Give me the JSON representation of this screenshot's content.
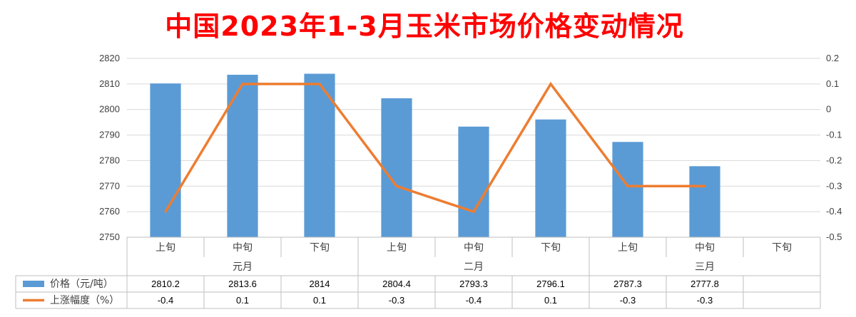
{
  "chart_data": {
    "type": "bar",
    "title": "中国2023年1-3月玉米市场价格变动情况",
    "categories": [
      "上旬",
      "中旬",
      "下旬",
      "上旬",
      "中旬",
      "下旬",
      "上旬",
      "中旬",
      "下旬"
    ],
    "months": [
      {
        "label": "元月",
        "span": 3
      },
      {
        "label": "二月",
        "span": 3
      },
      {
        "label": "三月",
        "span": 3
      }
    ],
    "series": [
      {
        "name": "价格（元/吨）",
        "type": "bar",
        "axis": "left",
        "color": "#5b9bd5",
        "values": [
          2810.2,
          2813.6,
          2814,
          2804.4,
          2793.3,
          2796.1,
          2787.3,
          2777.8,
          null
        ],
        "labels": [
          "2810.2",
          "2813.6",
          "2814",
          "2804.4",
          "2793.3",
          "2796.1",
          "2787.3",
          "2777.8",
          ""
        ]
      },
      {
        "name": "上涨幅度（%）",
        "type": "line",
        "axis": "right",
        "color": "#ed7d31",
        "values": [
          -0.4,
          0.1,
          0.1,
          -0.3,
          -0.4,
          0.1,
          -0.3,
          -0.3,
          null
        ],
        "labels": [
          "-0.4",
          "0.1",
          "0.1",
          "-0.3",
          "-0.4",
          "0.1",
          "-0.3",
          "-0.3",
          ""
        ]
      }
    ],
    "y_left": {
      "min": 2750,
      "max": 2820,
      "step": 10,
      "ticks": [
        "2750",
        "2760",
        "2770",
        "2780",
        "2790",
        "2800",
        "2810",
        "2820"
      ]
    },
    "y_right": {
      "min": -0.5,
      "max": 0.2,
      "step": 0.1,
      "ticks": [
        "-0.5",
        "-0.4",
        "-0.3",
        "-0.2",
        "-0.1",
        "0",
        "0.1",
        "0.2"
      ]
    },
    "grid": true,
    "legend": "bottom data table"
  }
}
